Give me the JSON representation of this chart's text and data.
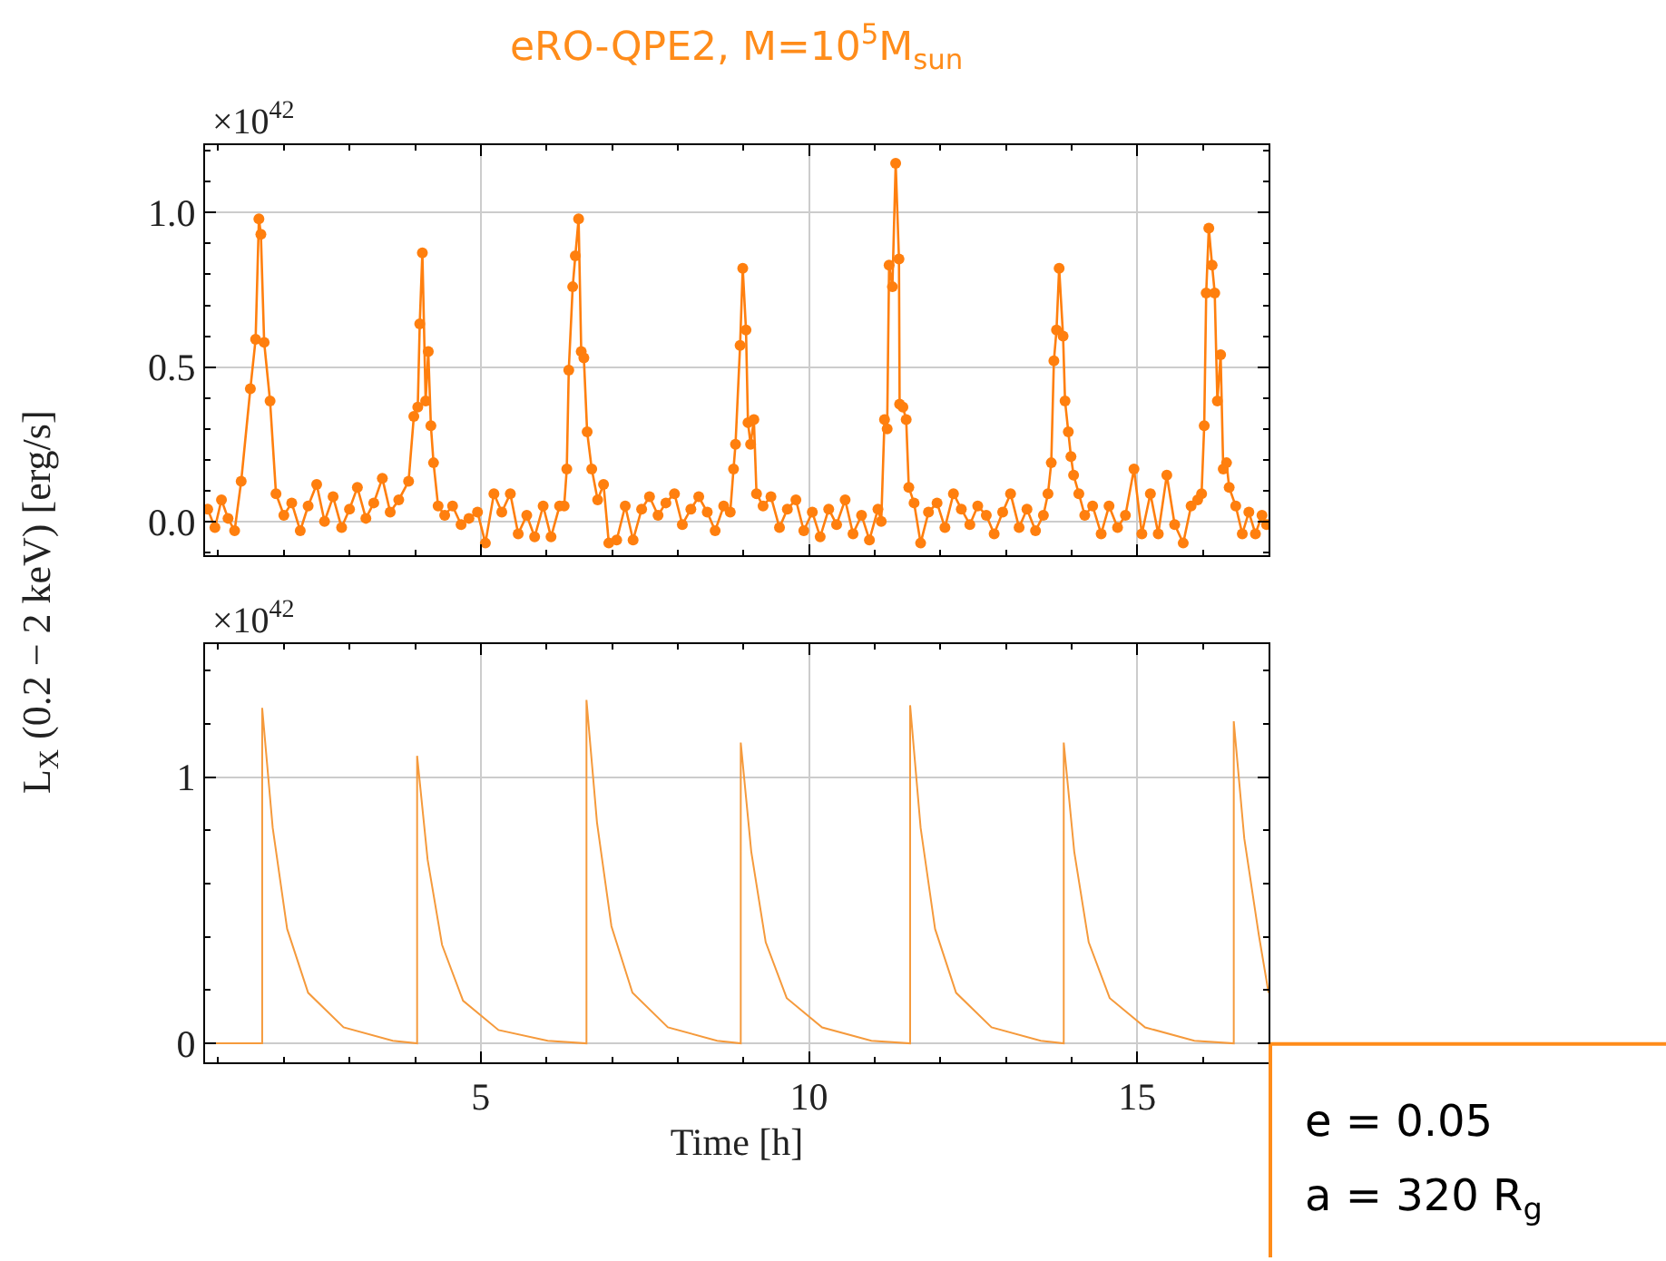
{
  "chart_data": [
    {
      "type": "line",
      "title": "eRO-QPE2, M=10$^{5}$M$_{sun}$",
      "ylabel": "L$_{X}$ (0.2 − 2 keV) [erg/s]",
      "annotations": [
        "×10$^{42}$"
      ],
      "marker": "circle",
      "line_style": "solid",
      "grid": true,
      "tick_labels": "y",
      "xlim": [
        0.8,
        17
      ],
      "xticks": [
        5,
        10,
        15
      ],
      "ylim": [
        -0.11,
        1.22
      ],
      "yticks": [
        {
          "value": 0,
          "label": "0.0"
        },
        {
          "value": 0.5,
          "label": "0.5"
        },
        {
          "value": 1,
          "label": "1.0"
        }
      ],
      "series": [
        {
          "color": "#ff7f0e",
          "x": [
            0.84,
            0.95,
            1.05,
            1.15,
            1.25,
            1.35,
            1.49,
            1.57,
            1.62,
            1.65,
            1.7,
            1.79,
            1.88,
            2.0,
            2.12,
            2.25,
            2.37,
            2.5,
            2.62,
            2.75,
            2.88,
            3.0,
            3.12,
            3.25,
            3.37,
            3.5,
            3.62,
            3.75,
            3.9,
            3.98,
            4.04,
            4.07,
            4.11,
            4.16,
            4.2,
            4.24,
            4.28,
            4.35,
            4.45,
            4.57,
            4.7,
            4.82,
            4.95,
            5.07,
            5.2,
            5.32,
            5.45,
            5.57,
            5.7,
            5.82,
            5.95,
            6.07,
            6.2,
            6.27,
            6.31,
            6.34,
            6.4,
            6.44,
            6.49,
            6.53,
            6.57,
            6.62,
            6.69,
            6.78,
            6.87,
            6.95,
            7.07,
            7.2,
            7.32,
            7.45,
            7.57,
            7.7,
            7.82,
            7.95,
            8.07,
            8.2,
            8.32,
            8.45,
            8.57,
            8.7,
            8.8,
            8.85,
            8.88,
            8.95,
            8.99,
            9.04,
            9.07,
            9.11,
            9.16,
            9.2,
            9.3,
            9.42,
            9.55,
            9.67,
            9.8,
            9.92,
            10.05,
            10.17,
            10.3,
            10.42,
            10.55,
            10.67,
            10.8,
            10.92,
            11.05,
            11.1,
            11.15,
            11.19,
            11.22,
            11.27,
            11.32,
            11.37,
            11.38,
            11.43,
            11.48,
            11.52,
            11.6,
            11.7,
            11.82,
            11.95,
            12.07,
            12.2,
            12.32,
            12.45,
            12.57,
            12.7,
            12.82,
            12.95,
            13.07,
            13.2,
            13.32,
            13.45,
            13.57,
            13.64,
            13.69,
            13.73,
            13.77,
            13.81,
            13.87,
            13.9,
            13.95,
            13.99,
            14.03,
            14.11,
            14.2,
            14.32,
            14.45,
            14.57,
            14.7,
            14.82,
            14.95,
            15.07,
            15.2,
            15.32,
            15.45,
            15.57,
            15.7,
            15.82,
            15.92,
            15.98,
            16.02,
            16.05,
            16.09,
            16.14,
            16.18,
            16.22,
            16.27,
            16.31,
            16.36,
            16.4,
            16.5,
            16.6,
            16.7,
            16.8,
            16.9,
            16.97
          ],
          "values": [
            0.04,
            -0.02,
            0.07,
            0.01,
            -0.03,
            0.13,
            0.43,
            0.59,
            0.98,
            0.93,
            0.58,
            0.39,
            0.09,
            0.02,
            0.06,
            -0.03,
            0.05,
            0.12,
            0.0,
            0.08,
            -0.02,
            0.04,
            0.11,
            0.01,
            0.06,
            0.14,
            0.03,
            0.07,
            0.13,
            0.34,
            0.37,
            0.64,
            0.87,
            0.39,
            0.55,
            0.31,
            0.19,
            0.05,
            0.02,
            0.05,
            -0.01,
            0.01,
            0.03,
            -0.07,
            0.09,
            0.03,
            0.09,
            -0.04,
            0.02,
            -0.05,
            0.05,
            -0.05,
            0.05,
            0.05,
            0.17,
            0.49,
            0.76,
            0.86,
            0.98,
            0.55,
            0.53,
            0.29,
            0.17,
            0.07,
            0.12,
            -0.07,
            -0.06,
            0.05,
            -0.06,
            0.04,
            0.08,
            0.02,
            0.06,
            0.09,
            -0.01,
            0.04,
            0.08,
            0.03,
            -0.03,
            0.05,
            0.03,
            0.17,
            0.25,
            0.57,
            0.82,
            0.62,
            0.32,
            0.25,
            0.33,
            0.09,
            0.05,
            0.08,
            -0.02,
            0.04,
            0.07,
            -0.03,
            0.03,
            -0.05,
            0.04,
            -0.01,
            0.07,
            -0.04,
            0.02,
            -0.06,
            0.04,
            0.0,
            0.33,
            0.3,
            0.83,
            0.76,
            1.16,
            0.85,
            0.38,
            0.37,
            0.33,
            0.11,
            0.06,
            -0.07,
            0.03,
            0.06,
            -0.02,
            0.09,
            0.04,
            -0.01,
            0.05,
            0.02,
            -0.04,
            0.03,
            0.09,
            -0.02,
            0.04,
            -0.03,
            0.02,
            0.09,
            0.19,
            0.52,
            0.62,
            0.82,
            0.6,
            0.39,
            0.29,
            0.21,
            0.15,
            0.09,
            0.02,
            0.05,
            -0.04,
            0.05,
            -0.02,
            0.02,
            0.17,
            -0.04,
            0.09,
            -0.04,
            0.15,
            -0.01,
            -0.07,
            0.05,
            0.07,
            0.09,
            0.31,
            0.74,
            0.95,
            0.83,
            0.74,
            0.39,
            0.54,
            0.17,
            0.19,
            0.11,
            0.05,
            -0.04,
            0.03,
            -0.04,
            0.02,
            -0.01
          ]
        }
      ]
    },
    {
      "type": "line",
      "xlabel": "Time [h]",
      "annotations": [
        "×10$^{42}$",
        "e = 0.05",
        "a = 320 R$_{g}$"
      ],
      "line_style": "solid",
      "grid": true,
      "xlim": [
        0.8,
        17
      ],
      "xticks": [
        5,
        10,
        15
      ],
      "ylim": [
        -0.07,
        1.5
      ],
      "yticks": [
        0,
        1
      ],
      "series": [
        {
          "color": "#f59a3c",
          "x": [
            0.8,
            1.67,
            1.67,
            1.83,
            2.05,
            2.37,
            2.91,
            3.66,
            4.03,
            4.03,
            4.19,
            4.41,
            4.73,
            5.27,
            6.02,
            6.61,
            6.61,
            6.77,
            6.99,
            7.31,
            7.85,
            8.6,
            8.96,
            8.96,
            9.12,
            9.34,
            9.66,
            10.2,
            10.95,
            11.54,
            11.54,
            11.7,
            11.92,
            12.24,
            12.78,
            13.53,
            13.88,
            13.88,
            14.04,
            14.26,
            14.58,
            15.12,
            15.87,
            16.47,
            16.47,
            16.63,
            16.85,
            17
          ],
          "values": [
            0,
            0,
            1.26,
            0.81,
            0.43,
            0.19,
            0.06,
            0.01,
            0,
            1.08,
            0.69,
            0.37,
            0.16,
            0.05,
            0.01,
            0,
            1.29,
            0.83,
            0.44,
            0.19,
            0.06,
            0.01,
            0,
            1.13,
            0.72,
            0.38,
            0.17,
            0.06,
            0.01,
            0,
            1.27,
            0.81,
            0.43,
            0.19,
            0.06,
            0.01,
            0,
            1.13,
            0.72,
            0.38,
            0.17,
            0.06,
            0.01,
            0,
            1.21,
            0.77,
            0.41,
            0.19
          ]
        }
      ]
    }
  ]
}
